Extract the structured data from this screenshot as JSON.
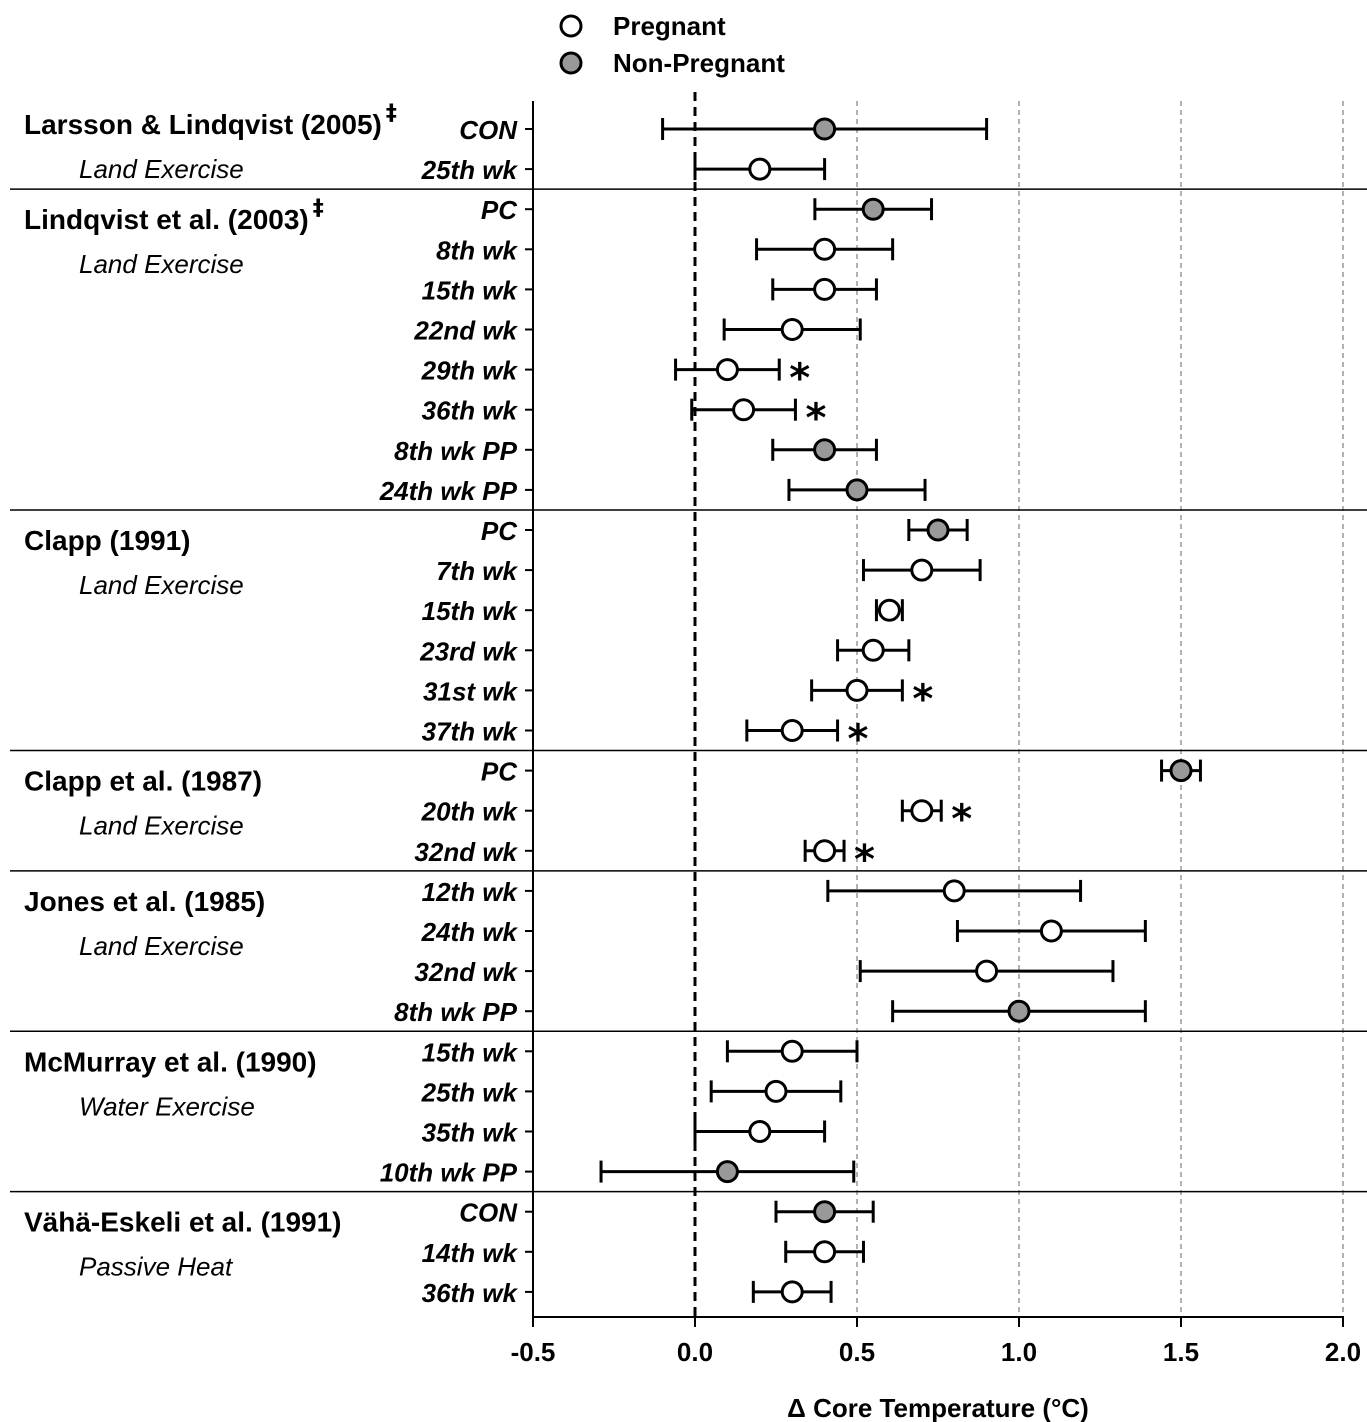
{
  "chart_data": {
    "type": "forest",
    "xlabel": "Δ Core Temperature (°C)",
    "xlim": [
      -0.5,
      2.0
    ],
    "xticks": [
      "-0.5",
      "0.0",
      "0.5",
      "1.0",
      "1.5",
      "2.0"
    ],
    "reference_line": 0.0,
    "vertical_gridlines": [
      0.5,
      1.0,
      1.5,
      2.0
    ],
    "legend": {
      "position": "top-center",
      "entries": [
        {
          "name": "Pregnant",
          "fill": "#ffffff"
        },
        {
          "name": "Non-Pregnant",
          "fill": "#999999"
        }
      ]
    },
    "studies": [
      {
        "title": "Larsson & Lindqvist (2005)",
        "mark": "‡",
        "subtitle": "Land Exercise",
        "rows": [
          {
            "label": "CON",
            "value": 0.4,
            "ci": [
              -0.1,
              0.9
            ],
            "group": "Non-Pregnant",
            "sig": ""
          },
          {
            "label": "25th wk",
            "value": 0.2,
            "ci": [
              0.0,
              0.4
            ],
            "group": "Pregnant",
            "sig": ""
          }
        ]
      },
      {
        "title": "Lindqvist et al. (2003)",
        "mark": "‡",
        "subtitle": "Land Exercise",
        "rows": [
          {
            "label": "PC",
            "value": 0.55,
            "ci": [
              0.37,
              0.73
            ],
            "group": "Non-Pregnant",
            "sig": ""
          },
          {
            "label": "8th wk",
            "value": 0.4,
            "ci": [
              0.19,
              0.61
            ],
            "group": "Pregnant",
            "sig": ""
          },
          {
            "label": "15th wk",
            "value": 0.4,
            "ci": [
              0.24,
              0.56
            ],
            "group": "Pregnant",
            "sig": ""
          },
          {
            "label": "22nd wk",
            "value": 0.3,
            "ci": [
              0.09,
              0.51
            ],
            "group": "Pregnant",
            "sig": ""
          },
          {
            "label": "29th wk",
            "value": 0.1,
            "ci": [
              -0.06,
              0.26
            ],
            "group": "Pregnant",
            "sig": "*"
          },
          {
            "label": "36th wk",
            "value": 0.15,
            "ci": [
              -0.01,
              0.31
            ],
            "group": "Pregnant",
            "sig": "*"
          },
          {
            "label": "8th wk PP",
            "value": 0.4,
            "ci": [
              0.24,
              0.56
            ],
            "group": "Non-Pregnant",
            "sig": ""
          },
          {
            "label": "24th wk PP",
            "value": 0.5,
            "ci": [
              0.29,
              0.71
            ],
            "group": "Non-Pregnant",
            "sig": ""
          }
        ]
      },
      {
        "title": "Clapp (1991)",
        "mark": "",
        "subtitle": "Land Exercise",
        "rows": [
          {
            "label": "PC",
            "value": 0.75,
            "ci": [
              0.66,
              0.84
            ],
            "group": "Non-Pregnant",
            "sig": ""
          },
          {
            "label": "7th wk",
            "value": 0.7,
            "ci": [
              0.52,
              0.88
            ],
            "group": "Pregnant",
            "sig": ""
          },
          {
            "label": "15th wk",
            "value": 0.6,
            "ci": [
              0.56,
              0.64
            ],
            "group": "Pregnant",
            "sig": ""
          },
          {
            "label": "23rd wk",
            "value": 0.55,
            "ci": [
              0.44,
              0.66
            ],
            "group": "Pregnant",
            "sig": ""
          },
          {
            "label": "31st wk",
            "value": 0.5,
            "ci": [
              0.36,
              0.64
            ],
            "group": "Pregnant",
            "sig": "*"
          },
          {
            "label": "37th wk",
            "value": 0.3,
            "ci": [
              0.16,
              0.44
            ],
            "group": "Pregnant",
            "sig": "*"
          }
        ]
      },
      {
        "title": "Clapp et al. (1987)",
        "mark": "",
        "subtitle": "Land Exercise",
        "rows": [
          {
            "label": "PC",
            "value": 1.5,
            "ci": [
              1.44,
              1.56
            ],
            "group": "Non-Pregnant",
            "sig": ""
          },
          {
            "label": "20th wk",
            "value": 0.7,
            "ci": [
              0.64,
              0.76
            ],
            "group": "Pregnant",
            "sig": "*"
          },
          {
            "label": "32nd wk",
            "value": 0.4,
            "ci": [
              0.34,
              0.46
            ],
            "group": "Pregnant",
            "sig": "*"
          }
        ]
      },
      {
        "title": "Jones et al. (1985)",
        "mark": "",
        "subtitle": "Land Exercise",
        "rows": [
          {
            "label": "12th wk",
            "value": 0.8,
            "ci": [
              0.41,
              1.19
            ],
            "group": "Pregnant",
            "sig": ""
          },
          {
            "label": "24th wk",
            "value": 1.1,
            "ci": [
              0.81,
              1.39
            ],
            "group": "Pregnant",
            "sig": ""
          },
          {
            "label": "32nd wk",
            "value": 0.9,
            "ci": [
              0.51,
              1.29
            ],
            "group": "Pregnant",
            "sig": ""
          },
          {
            "label": "8th wk PP",
            "value": 1.0,
            "ci": [
              0.61,
              1.39
            ],
            "group": "Non-Pregnant",
            "sig": ""
          }
        ]
      },
      {
        "title": "McMurray et al. (1990)",
        "mark": "",
        "subtitle": "Water Exercise",
        "rows": [
          {
            "label": "15th wk",
            "value": 0.3,
            "ci": [
              0.1,
              0.5
            ],
            "group": "Pregnant",
            "sig": ""
          },
          {
            "label": "25th wk",
            "value": 0.25,
            "ci": [
              0.05,
              0.45
            ],
            "group": "Pregnant",
            "sig": ""
          },
          {
            "label": "35th wk",
            "value": 0.2,
            "ci": [
              0.0,
              0.4
            ],
            "group": "Pregnant",
            "sig": ""
          },
          {
            "label": "10th wk PP",
            "value": 0.1,
            "ci": [
              -0.29,
              0.49
            ],
            "group": "Non-Pregnant",
            "sig": ""
          }
        ]
      },
      {
        "title": "Vähä-Eskeli et al. (1991)",
        "mark": "",
        "subtitle": "Passive Heat",
        "rows": [
          {
            "label": "CON",
            "value": 0.4,
            "ci": [
              0.25,
              0.55
            ],
            "group": "Non-Pregnant",
            "sig": ""
          },
          {
            "label": "14th wk",
            "value": 0.4,
            "ci": [
              0.28,
              0.52
            ],
            "group": "Pregnant",
            "sig": ""
          },
          {
            "label": "36th wk",
            "value": 0.3,
            "ci": [
              0.18,
              0.42
            ],
            "group": "Pregnant",
            "sig": ""
          }
        ]
      }
    ]
  }
}
